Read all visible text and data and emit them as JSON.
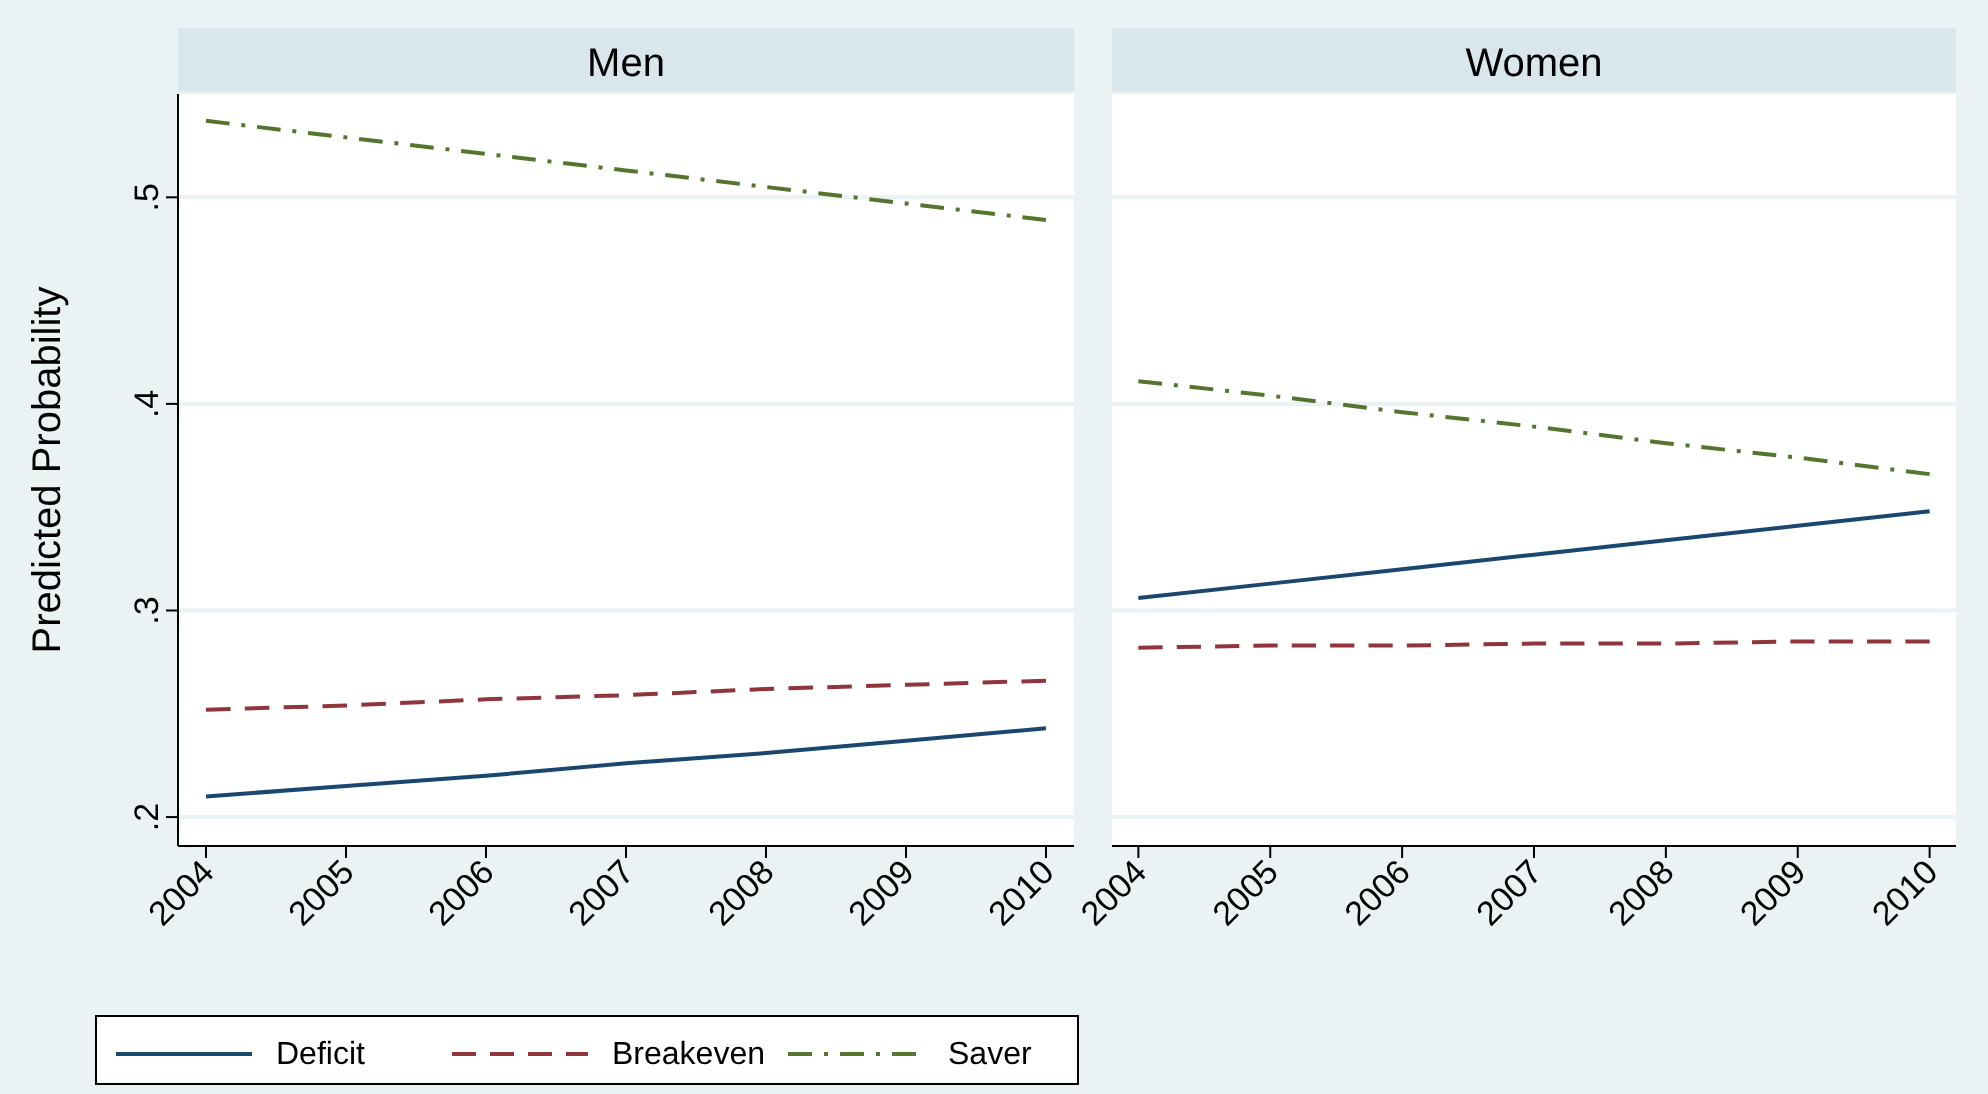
{
  "chart_data": [
    {
      "type": "line",
      "title": "Men",
      "ylabel": "Predicted Probability",
      "x": [
        2004,
        2005,
        2006,
        2007,
        2008,
        2009,
        2010
      ],
      "xlim": [
        2003.8,
        2010.2
      ],
      "xticks": [
        2004,
        2005,
        2006,
        2007,
        2008,
        2009,
        2010
      ],
      "ylim": [
        0.186,
        0.55
      ],
      "yticks": [
        {
          "value": 0.2,
          "label": ".2"
        },
        {
          "value": 0.3,
          "label": ".3"
        },
        {
          "value": 0.4,
          "label": ".4"
        },
        {
          "value": 0.5,
          "label": ".5"
        }
      ],
      "grid": "y",
      "legend": "bottom",
      "series": [
        {
          "name": "Deficit",
          "color": "#1a476f",
          "line_style": "solid",
          "values": [
            0.21,
            0.215,
            0.22,
            0.226,
            0.231,
            0.237,
            0.243
          ]
        },
        {
          "name": "Breakeven",
          "color": "#90353b",
          "line_style": "dashed",
          "values": [
            0.252,
            0.254,
            0.257,
            0.259,
            0.262,
            0.264,
            0.266
          ]
        },
        {
          "name": "Saver",
          "color": "#55752f",
          "line_style": "dashdot",
          "values": [
            0.537,
            0.529,
            0.521,
            0.513,
            0.505,
            0.497,
            0.489
          ]
        }
      ]
    },
    {
      "type": "line",
      "title": "Women",
      "x": [
        2004,
        2005,
        2006,
        2007,
        2008,
        2009,
        2010
      ],
      "xlim": [
        2003.8,
        2010.2
      ],
      "xticks": [
        2004,
        2005,
        2006,
        2007,
        2008,
        2009,
        2010
      ],
      "ylim": [
        0.186,
        0.55
      ],
      "yticks": [
        0.2,
        0.3,
        0.4,
        0.5
      ],
      "grid": "y",
      "tick_labels": "x",
      "series": [
        {
          "color": "#1a476f",
          "line_style": "solid",
          "values": [
            0.306,
            0.313,
            0.32,
            0.327,
            0.334,
            0.341,
            0.348
          ]
        },
        {
          "color": "#90353b",
          "line_style": "dashed",
          "values": [
            0.282,
            0.283,
            0.283,
            0.284,
            0.284,
            0.285,
            0.285
          ]
        },
        {
          "color": "#55752f",
          "line_style": "dashdot",
          "values": [
            0.411,
            0.404,
            0.396,
            0.389,
            0.381,
            0.374,
            0.366
          ]
        }
      ]
    }
  ]
}
